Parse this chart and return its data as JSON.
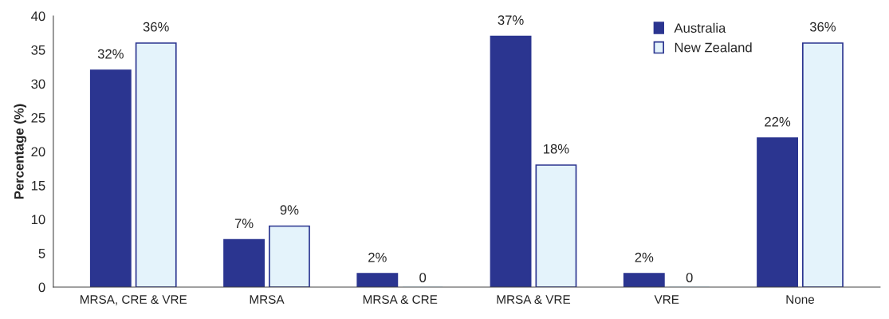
{
  "chart_data": {
    "type": "bar",
    "ylabel": "Percentage (%)",
    "categories": [
      "MRSA, CRE & VRE",
      "MRSA",
      "MRSA & CRE",
      "MRSA & VRE",
      "VRE",
      "None"
    ],
    "series": [
      {
        "name": "Australia",
        "color": "#2b3590",
        "values": [
          32,
          7,
          2,
          37,
          2,
          22
        ],
        "value_labels": [
          "32%",
          "7%",
          "2%",
          "37%",
          "2%",
          "22%"
        ]
      },
      {
        "name": "New Zealand",
        "color": "#e4f3fb",
        "values": [
          36,
          9,
          0,
          18,
          0,
          36
        ],
        "value_labels": [
          "36%",
          "9%",
          "0",
          "18%",
          "0",
          "36%"
        ]
      }
    ],
    "ylim": [
      0,
      40
    ],
    "yticks": [
      0,
      5,
      10,
      15,
      20,
      25,
      30,
      35,
      40
    ],
    "grid": false,
    "legend": "top right"
  }
}
